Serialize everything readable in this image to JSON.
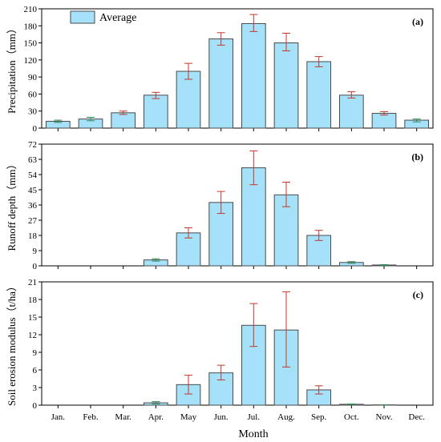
{
  "chart_data": [
    {
      "type": "bar",
      "panel_label": "(a)",
      "ylabel": "Precipitation（mm）",
      "ylim": [
        0,
        210
      ],
      "yticks": [
        0,
        30,
        60,
        90,
        120,
        150,
        180,
        210
      ],
      "categories": [
        "Jan.",
        "Feb.",
        "Mar.",
        "Apr.",
        "May",
        "Jun.",
        "Jul.",
        "Aug.",
        "Sep.",
        "Oct.",
        "Nov.",
        "Dec."
      ],
      "series": [
        {
          "name": "Average",
          "values": [
            12,
            16,
            27,
            58,
            100,
            157,
            184,
            150,
            117,
            58,
            26,
            14
          ],
          "err_low": [
            10,
            13,
            24,
            52,
            86,
            146,
            170,
            136,
            108,
            53,
            23,
            11
          ],
          "err_high": [
            14,
            19,
            30,
            63,
            114,
            168,
            200,
            167,
            126,
            64,
            29,
            16
          ]
        }
      ],
      "legend": "top-left"
    },
    {
      "type": "bar",
      "panel_label": "(b)",
      "ylabel": "Runoff depth（mm）",
      "ylim": [
        0,
        72
      ],
      "yticks": [
        0,
        9,
        18,
        27,
        36,
        45,
        54,
        63,
        72
      ],
      "categories": [
        "Jan.",
        "Feb.",
        "Mar.",
        "Apr.",
        "May",
        "Jun.",
        "Jul.",
        "Aug.",
        "Sep.",
        "Oct.",
        "Nov.",
        "Dec."
      ],
      "series": [
        {
          "name": "Average",
          "values": [
            0,
            0,
            0,
            3.5,
            19.5,
            37.5,
            58,
            42,
            18,
            2,
            0.5,
            0
          ],
          "err_low": [
            0,
            0,
            0,
            2.8,
            16.5,
            31,
            48,
            35,
            15,
            1.5,
            0.3,
            0
          ],
          "err_high": [
            0,
            0,
            0,
            4.2,
            22.5,
            44,
            68,
            49.5,
            21,
            2.5,
            0.7,
            0
          ]
        }
      ]
    },
    {
      "type": "bar",
      "panel_label": "(c)",
      "ylabel": "Soil erosion modulus（t/ha）",
      "ylim": [
        0,
        21
      ],
      "yticks": [
        0,
        3,
        6,
        9,
        12,
        15,
        18,
        21
      ],
      "categories": [
        "Jan.",
        "Feb.",
        "Mar.",
        "Apr.",
        "May",
        "Jun.",
        "Jul.",
        "Aug.",
        "Sep.",
        "Oct.",
        "Nov.",
        "Dec."
      ],
      "xlabel": "Month",
      "series": [
        {
          "name": "Average",
          "values": [
            0,
            0,
            0,
            0.4,
            3.5,
            5.5,
            13.6,
            12.8,
            2.6,
            0.15,
            0.05,
            0
          ],
          "err_low": [
            0,
            0,
            0,
            0.25,
            1.9,
            4.3,
            10,
            6.5,
            1.9,
            0.1,
            0.03,
            0
          ],
          "err_high": [
            0,
            0,
            0,
            0.6,
            5.1,
            6.8,
            17.3,
            19.3,
            3.3,
            0.2,
            0.07,
            0
          ]
        }
      ]
    }
  ],
  "colors": {
    "bar_fill": "#a6e1fa",
    "bar_stroke": "#4a4a4a",
    "error_bar": "#c0392b",
    "error_bar_small": "#2e8b57"
  }
}
